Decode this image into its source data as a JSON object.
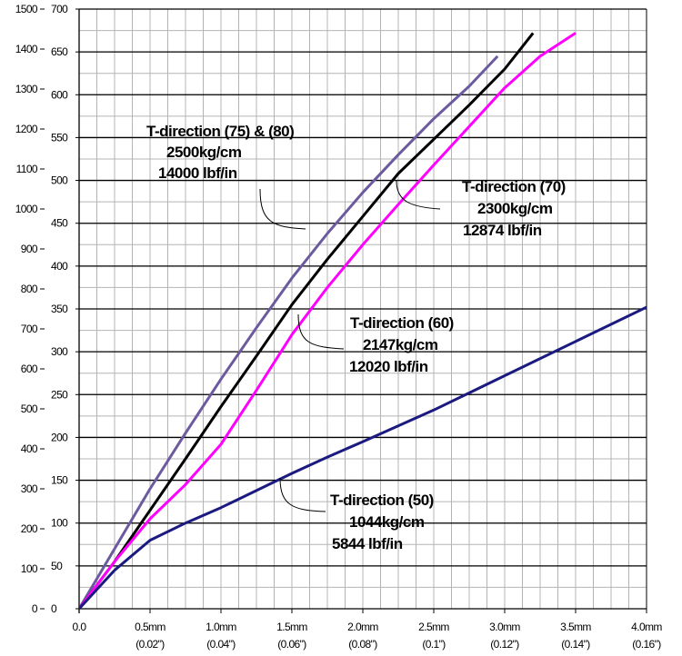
{
  "chart_data": {
    "type": "line",
    "x_range": [
      0,
      4.0
    ],
    "y_range_inner": [
      0,
      700
    ],
    "y_range_outer": [
      0,
      1500
    ],
    "x_tick_values": [
      0,
      0.5,
      1.0,
      1.5,
      2.0,
      2.5,
      3.0,
      3.5,
      4.0
    ],
    "x_tick_labels": [
      "0.0",
      "0.5mm",
      "1.0mm",
      "1.5mm",
      "2.0mm",
      "2.5mm",
      "3.0mm",
      "3.5mm",
      "4.0mm"
    ],
    "x_tick_sublabels": [
      "",
      "(0.02\")",
      "(0.04\")",
      "(0.06\")",
      "(0.08\")",
      "(0.1\")",
      "(0.12\")",
      "(0.14\")",
      "(0.16\")"
    ],
    "y_inner_ticks": [
      "0",
      "50",
      "100",
      "150",
      "200",
      "250",
      "300",
      "350",
      "400",
      "450",
      "500",
      "550",
      "600",
      "650",
      "700"
    ],
    "y_outer_ticks": [
      "0",
      "100",
      "200",
      "300",
      "400",
      "500",
      "600",
      "700",
      "800",
      "900",
      "1000",
      "1100",
      "1200",
      "1300",
      "1400",
      "1500"
    ],
    "grid": true,
    "series": [
      {
        "color": "#6B5A9E",
        "x": [
          0,
          0.25,
          0.5,
          0.75,
          1.0,
          1.25,
          1.5,
          1.75,
          2.0,
          2.25,
          2.5,
          2.75,
          2.95
        ],
        "y": [
          0,
          70,
          140,
          205,
          268,
          328,
          386,
          438,
          486,
          530,
          572,
          610,
          645
        ]
      },
      {
        "color": "#000000",
        "x": [
          0,
          0.25,
          0.5,
          0.75,
          1.0,
          1.25,
          1.5,
          1.75,
          2.0,
          2.25,
          2.5,
          2.75,
          3.0,
          3.2
        ],
        "y": [
          0,
          55,
          115,
          175,
          236,
          295,
          355,
          408,
          458,
          508,
          548,
          588,
          630,
          672
        ]
      },
      {
        "color": "#FF00FF",
        "x": [
          0,
          0.25,
          0.5,
          0.75,
          1.0,
          1.25,
          1.5,
          1.75,
          2.0,
          2.25,
          2.5,
          2.75,
          3.0,
          3.25,
          3.5
        ],
        "y": [
          0,
          55,
          105,
          145,
          192,
          255,
          320,
          375,
          425,
          472,
          518,
          563,
          608,
          645,
          672
        ]
      },
      {
        "color": "#1A1A80",
        "x": [
          0,
          0.25,
          0.5,
          0.75,
          1.0,
          1.25,
          1.5,
          1.75,
          2.0,
          2.5,
          3.0,
          3.5,
          4.0
        ],
        "y": [
          0,
          45,
          80,
          100,
          118,
          138,
          158,
          177,
          195,
          232,
          272,
          312,
          352
        ]
      }
    ],
    "annotations": [
      {
        "lines": [
          "T-direction (75) & (80)",
          "2500kg/cm",
          "14000 lbf/in"
        ]
      },
      {
        "lines": [
          "T-direction (70)",
          "2300kg/cm",
          "12874 lbf/in"
        ]
      },
      {
        "lines": [
          "T-direction (60)",
          "2147kg/cm",
          "12020 lbf/in"
        ]
      },
      {
        "lines": [
          "T-direction (50)",
          "1044kg/cm",
          "5844 lbf/in"
        ]
      }
    ]
  }
}
